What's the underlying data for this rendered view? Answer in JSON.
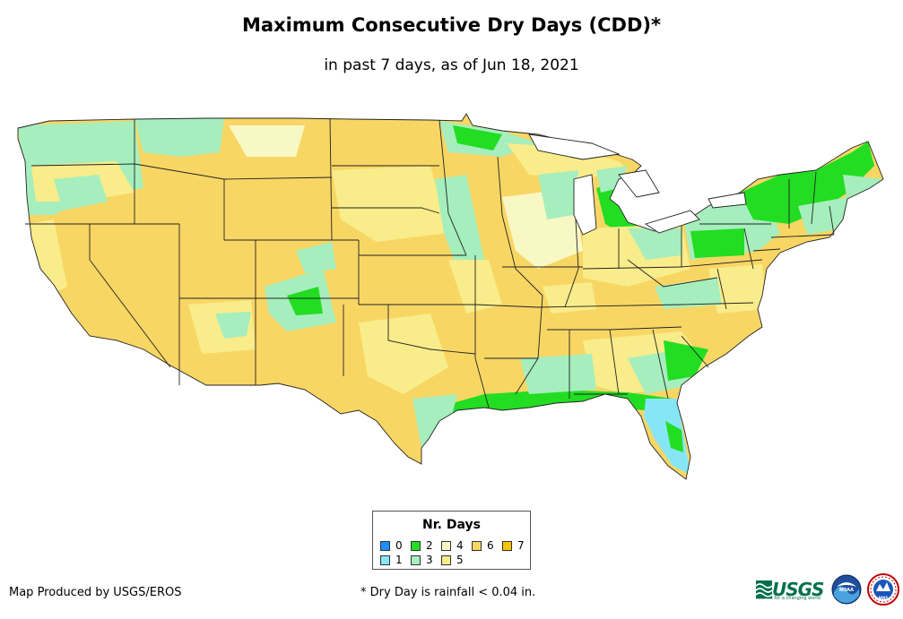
{
  "header": {
    "title": "Maximum Consecutive Dry Days (CDD)*",
    "subtitle": "in past 7 days, as of Jun 18, 2021"
  },
  "legend": {
    "title": "Nr. Days",
    "items": [
      {
        "label": "0",
        "color": "#1e90ff"
      },
      {
        "label": "1",
        "color": "#87e6f5"
      },
      {
        "label": "2",
        "color": "#22dd22"
      },
      {
        "label": "3",
        "color": "#a6eebd"
      },
      {
        "label": "4",
        "color": "#f8f8c4"
      },
      {
        "label": "5",
        "color": "#f9ec8a"
      },
      {
        "label": "6",
        "color": "#f8d664"
      },
      {
        "label": "7",
        "color": "#f9c400"
      }
    ]
  },
  "footer": {
    "credit": "Map Produced by USGS/EROS",
    "footnote": "* Dry Day is rainfall < 0.04 in."
  },
  "logos": {
    "usgs_text": "USGS",
    "usgs_tagline": "science for a changing world",
    "noaa_text": "NOAA",
    "nws_text": "NWS"
  }
}
